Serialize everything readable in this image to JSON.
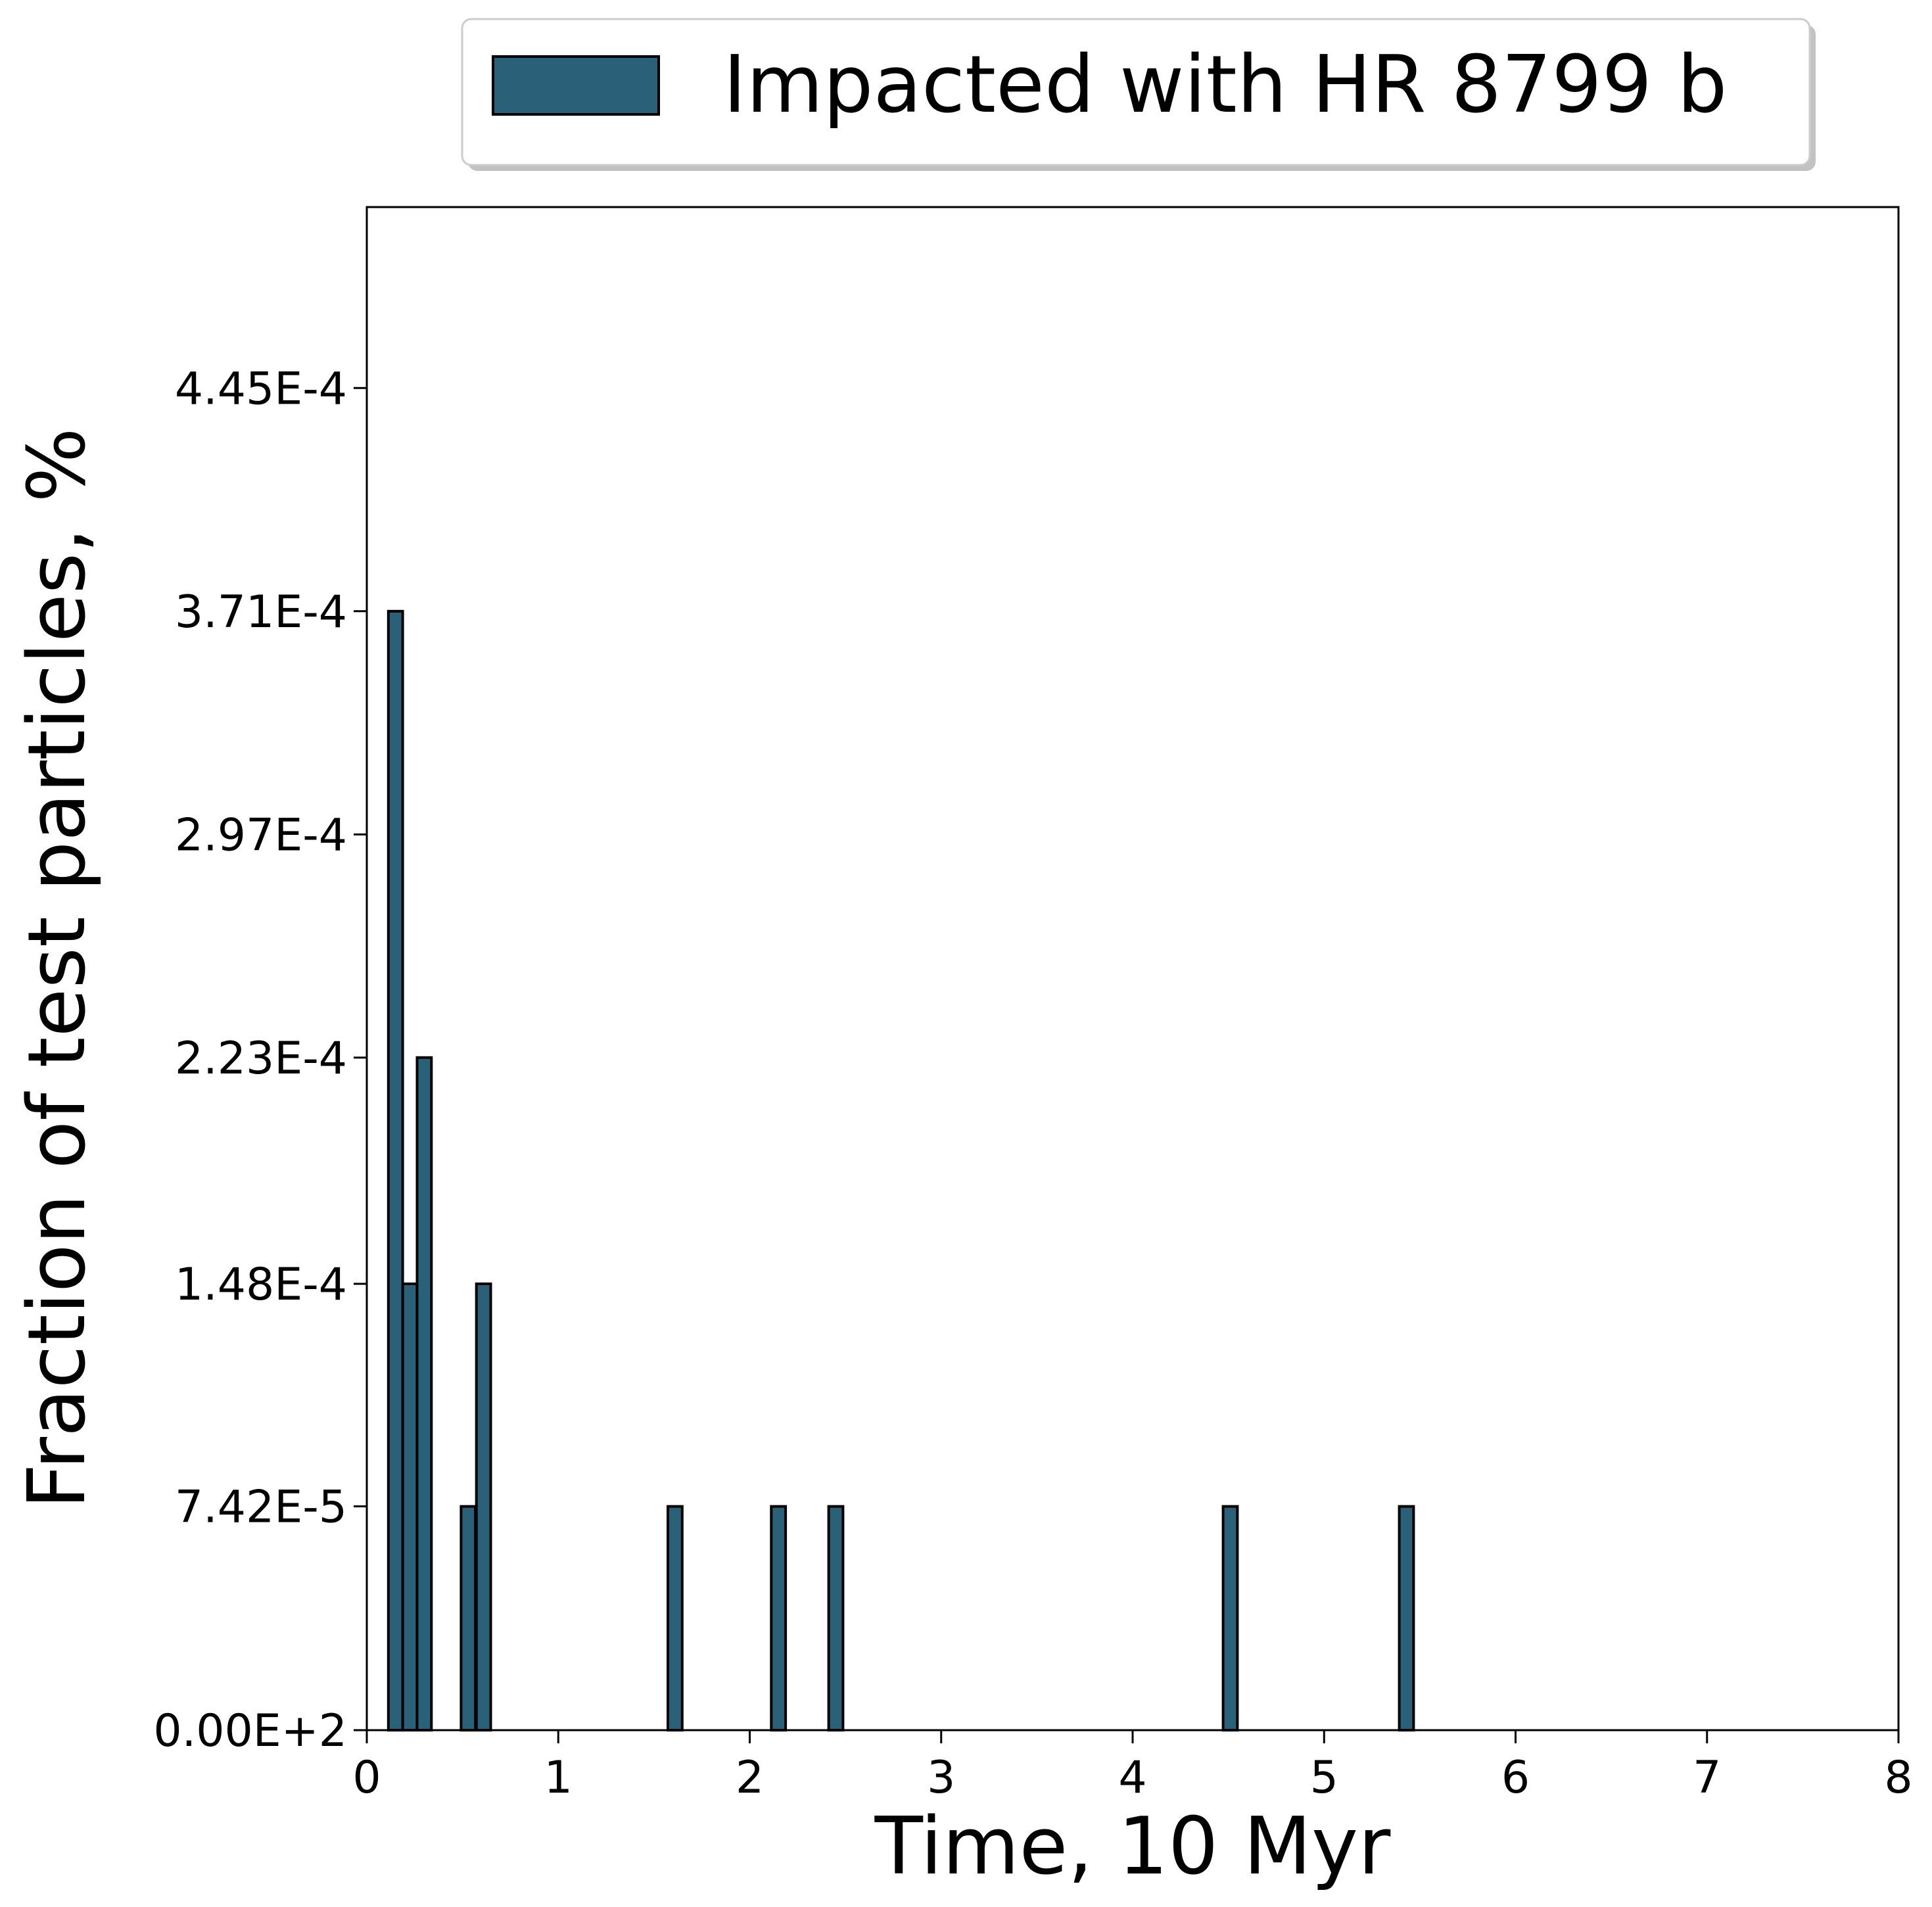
{
  "chart_data": {
    "type": "bar",
    "title": "",
    "xlabel": "Time, 10 Myr",
    "ylabel": "Fraction of test particles, %",
    "xlim": [
      0,
      8
    ],
    "ylim": [
      0,
      0.000505
    ],
    "x_ticks": [
      {
        "value": 0,
        "label": "0"
      },
      {
        "value": 1,
        "label": "1"
      },
      {
        "value": 2,
        "label": "2"
      },
      {
        "value": 3,
        "label": "3"
      },
      {
        "value": 4,
        "label": "4"
      },
      {
        "value": 5,
        "label": "5"
      },
      {
        "value": 6,
        "label": "6"
      },
      {
        "value": 7,
        "label": "7"
      },
      {
        "value": 8,
        "label": "8"
      }
    ],
    "y_ticks": [
      {
        "value": 0,
        "label": "0.00E+2"
      },
      {
        "value": 7.42e-05,
        "label": "7.42E-5"
      },
      {
        "value": 0.000148,
        "label": "1.48E-4"
      },
      {
        "value": 0.000223,
        "label": "2.23E-4"
      },
      {
        "value": 0.000297,
        "label": "2.97E-4"
      },
      {
        "value": 0.000371,
        "label": "3.71E-4"
      },
      {
        "value": 0.000445,
        "label": "4.45E-4"
      }
    ],
    "bar_width": 0.075,
    "series": [
      {
        "name": "Impacted with HR 8799 b",
        "color": "#2a6178",
        "bars": [
          {
            "x": 0.15,
            "value": 0.000371
          },
          {
            "x": 0.225,
            "value": 0.000148
          },
          {
            "x": 0.3,
            "value": 0.000223
          },
          {
            "x": 0.53,
            "value": 7.42e-05
          },
          {
            "x": 0.61,
            "value": 0.000148
          },
          {
            "x": 1.61,
            "value": 7.42e-05
          },
          {
            "x": 2.15,
            "value": 7.42e-05
          },
          {
            "x": 2.45,
            "value": 7.42e-05
          },
          {
            "x": 4.51,
            "value": 7.42e-05
          },
          {
            "x": 5.43,
            "value": 7.42e-05
          }
        ]
      }
    ],
    "grid": false,
    "legend_position": "top-center, outside above plot"
  }
}
